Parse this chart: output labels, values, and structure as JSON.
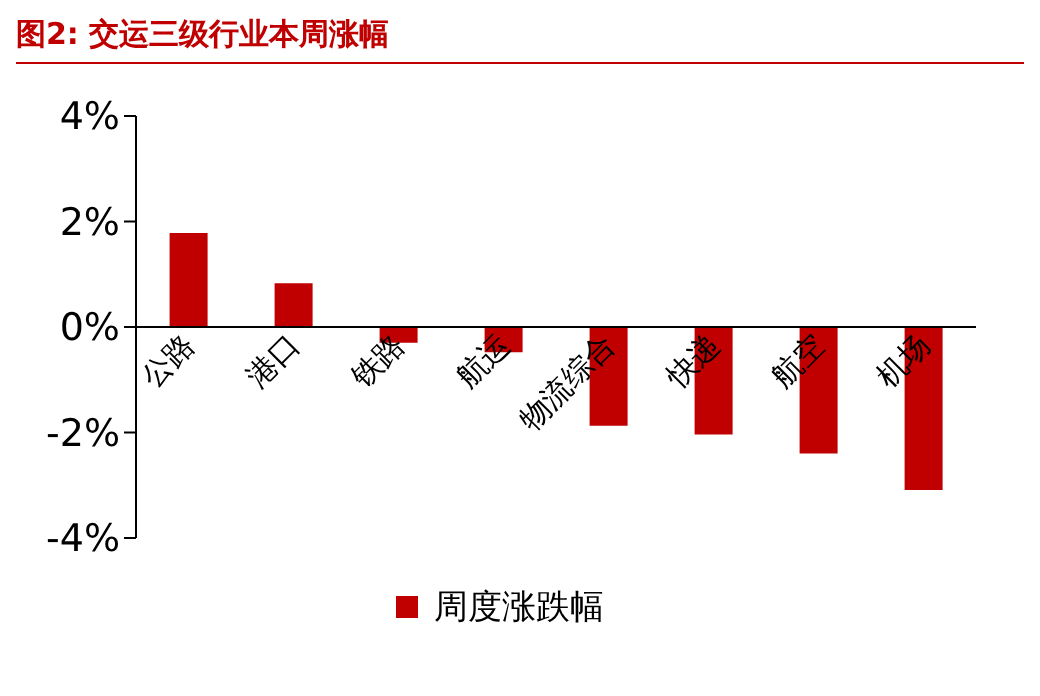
{
  "chart_data": {
    "type": "bar",
    "title": "图2:   交运三级行业本周涨幅",
    "categories": [
      "公路",
      "港口",
      "铁路",
      "航运",
      "物流综合",
      "快递",
      "航空",
      "机场"
    ],
    "series": [
      {
        "name": "周度涨跌幅",
        "color": "#c00000",
        "values": [
          1.78,
          0.83,
          -0.3,
          -0.48,
          -1.87,
          -2.04,
          -2.4,
          -3.09
        ]
      }
    ],
    "ylim": [
      -4,
      4
    ],
    "yticks": [
      {
        "value": -4,
        "label": "-4%"
      },
      {
        "value": -2,
        "label": "-2%"
      },
      {
        "value": 0,
        "label": "0%"
      },
      {
        "value": 2,
        "label": "2%"
      },
      {
        "value": 4,
        "label": "4%"
      }
    ],
    "grid": false,
    "legend": "bottom"
  }
}
